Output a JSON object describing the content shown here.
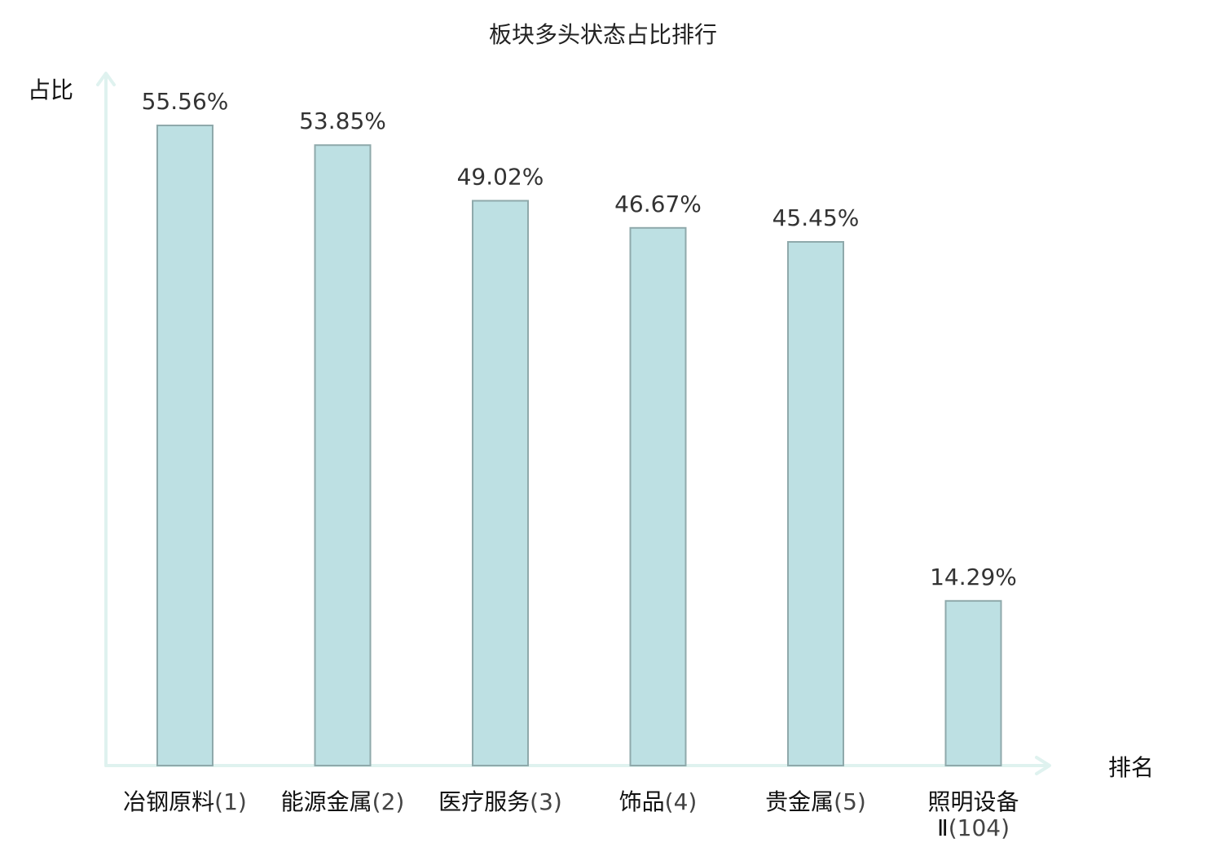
{
  "chart_data": {
    "type": "bar",
    "title": "板块多头状态占比排行",
    "ylabel": "占比",
    "xlabel": "排名",
    "ylim": [
      0,
      60
    ],
    "categories": [
      {
        "name": "冶钢原料",
        "rank": "(1)",
        "highlight": false
      },
      {
        "name": "能源金属",
        "rank": "(2)",
        "highlight": false
      },
      {
        "name": "医疗服务",
        "rank": "(3)",
        "highlight": false
      },
      {
        "name": "饰品",
        "rank": "(4)",
        "highlight": false
      },
      {
        "name": "贵金属",
        "rank": "(5)",
        "highlight": false
      },
      {
        "name": "照明设备",
        "name2": "Ⅱ",
        "rank": "(104)",
        "highlight": true
      }
    ],
    "values": [
      55.56,
      53.85,
      49.02,
      46.67,
      45.45,
      14.29
    ],
    "value_labels": [
      "55.56%",
      "53.85%",
      "49.02%",
      "46.67%",
      "45.45%",
      "14.29%"
    ],
    "grid": false,
    "colors": {
      "bar_fill": "#bde0e3",
      "bar_stroke": "#8fa9ab",
      "axis": "#dff2ef",
      "highlight": "#e8141b"
    }
  }
}
